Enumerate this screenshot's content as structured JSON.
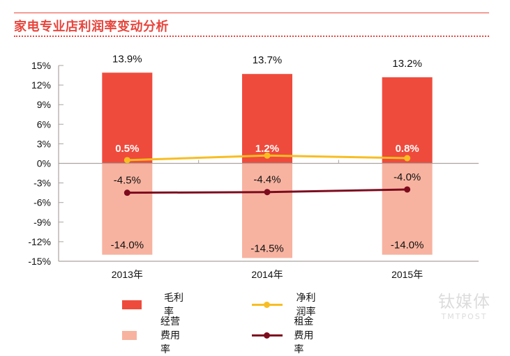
{
  "chart_data": {
    "type": "bar",
    "title": "家电专业店利润率变动分析",
    "categories": [
      "2013年",
      "2014年",
      "2015年"
    ],
    "ylim": [
      -15,
      15
    ],
    "yticks": [
      15,
      12,
      9,
      6,
      3,
      0,
      -3,
      -6,
      -9,
      -12,
      -15
    ],
    "ytick_labels": [
      "15%",
      "12%",
      "9%",
      "6%",
      "3%",
      "0%",
      "-3%",
      "-6%",
      "-9%",
      "-12%",
      "-15%"
    ],
    "grid": false,
    "legend_position": "bottom",
    "series": [
      {
        "name": "毛利率",
        "kind": "bar",
        "color": "#ef4b3c",
        "values": [
          13.9,
          13.7,
          13.2
        ],
        "labels": [
          "13.9%",
          "13.7%",
          "13.2%"
        ]
      },
      {
        "name": "经营费用率",
        "kind": "bar",
        "color": "#f7b3a0",
        "values": [
          -14.0,
          -14.5,
          -14.0
        ],
        "labels": [
          "-14.0%",
          "-14.5%",
          "-14.0%"
        ]
      },
      {
        "name": "净利润率",
        "kind": "line",
        "color": "#f8bd22",
        "values": [
          0.5,
          1.2,
          0.8
        ],
        "labels": [
          "0.5%",
          "1.2%",
          "0.8%"
        ]
      },
      {
        "name": "租金费用率",
        "kind": "line",
        "color": "#7d0b1e",
        "values": [
          -4.5,
          -4.4,
          -4.0
        ],
        "labels": [
          "-4.5%",
          "-4.4%",
          "-4.0%"
        ]
      }
    ]
  },
  "watermark": {
    "cn": "钛媒体",
    "en": "TMTPOST"
  }
}
